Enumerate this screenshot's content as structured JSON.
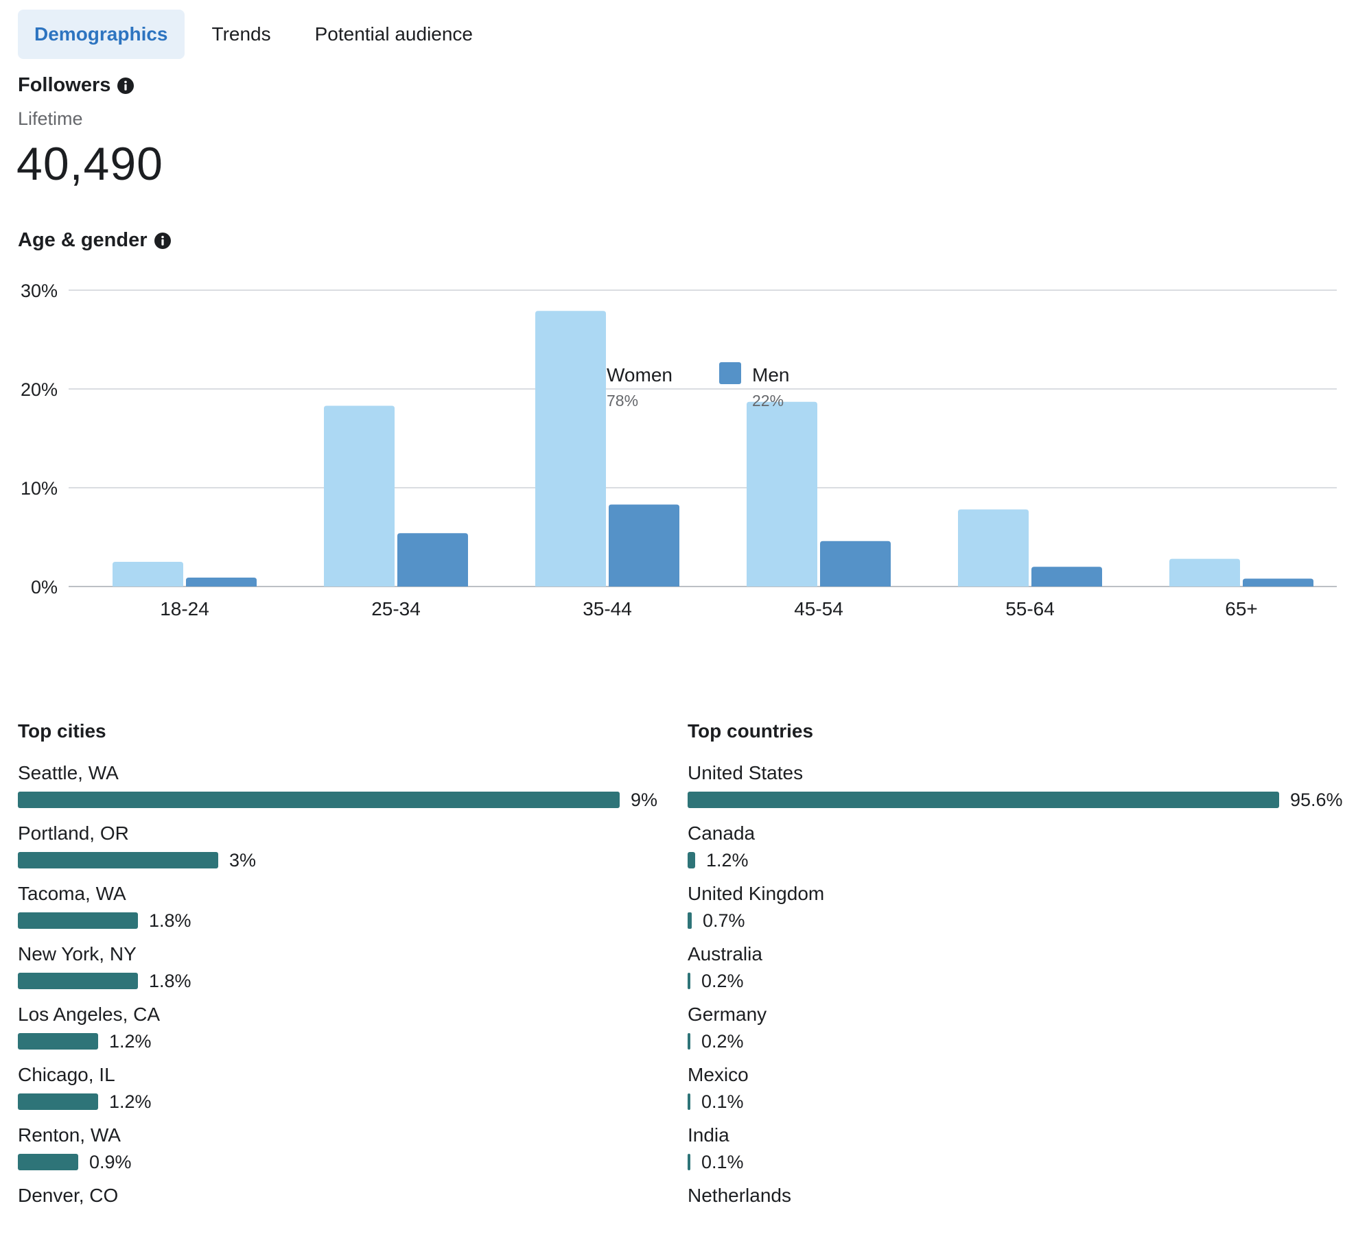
{
  "tabs": [
    {
      "label": "Demographics",
      "active": true
    },
    {
      "label": "Trends",
      "active": false
    },
    {
      "label": "Potential audience",
      "active": false
    }
  ],
  "followers": {
    "title": "Followers",
    "period": "Lifetime",
    "count": "40,490"
  },
  "age_gender": {
    "title": "Age & gender"
  },
  "colors": {
    "women": "#acd8f3",
    "men": "#5592c8",
    "bar": "#2e7478",
    "accent": "#2d74c0"
  },
  "chart_data": {
    "type": "bar",
    "title": "Age & gender",
    "categories": [
      "18-24",
      "25-34",
      "35-44",
      "45-54",
      "55-64",
      "65+"
    ],
    "series": [
      {
        "name": "Women",
        "share": "78%",
        "values": [
          2.5,
          18.3,
          27.9,
          18.7,
          7.8,
          2.8
        ]
      },
      {
        "name": "Men",
        "share": "22%",
        "values": [
          0.9,
          5.4,
          8.3,
          4.6,
          2.0,
          0.8
        ]
      }
    ],
    "yticks": [
      "0%",
      "10%",
      "20%",
      "30%"
    ],
    "ylim": [
      0,
      30
    ],
    "grid": true,
    "legend": "bottom-center"
  },
  "top_cities": {
    "title": "Top cities",
    "items": [
      {
        "name": "Seattle, WA",
        "value": "9%",
        "pct": 9
      },
      {
        "name": "Portland, OR",
        "value": "3%",
        "pct": 3
      },
      {
        "name": "Tacoma, WA",
        "value": "1.8%",
        "pct": 1.8
      },
      {
        "name": "New York, NY",
        "value": "1.8%",
        "pct": 1.8
      },
      {
        "name": "Los Angeles, CA",
        "value": "1.2%",
        "pct": 1.2
      },
      {
        "name": "Chicago, IL",
        "value": "1.2%",
        "pct": 1.2
      },
      {
        "name": "Renton, WA",
        "value": "0.9%",
        "pct": 0.9
      },
      {
        "name": "Denver, CO",
        "value": "",
        "pct": null
      }
    ]
  },
  "top_countries": {
    "title": "Top countries",
    "items": [
      {
        "name": "United States",
        "value": "95.6%",
        "pct": 95.6
      },
      {
        "name": "Canada",
        "value": "1.2%",
        "pct": 1.2
      },
      {
        "name": "United Kingdom",
        "value": "0.7%",
        "pct": 0.7
      },
      {
        "name": "Australia",
        "value": "0.2%",
        "pct": 0.2
      },
      {
        "name": "Germany",
        "value": "0.2%",
        "pct": 0.2
      },
      {
        "name": "Mexico",
        "value": "0.1%",
        "pct": 0.1
      },
      {
        "name": "India",
        "value": "0.1%",
        "pct": 0.1
      },
      {
        "name": "Netherlands",
        "value": "",
        "pct": null
      }
    ]
  }
}
